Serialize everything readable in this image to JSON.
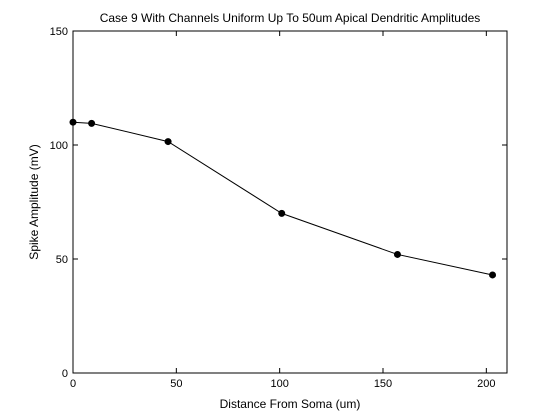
{
  "chart_data": {
    "type": "line",
    "title": "Case 9 With Channels Uniform Up To 50um Apical Dendritic Amplitudes",
    "xlabel": "Distance From Soma (um)",
    "ylabel": "Spike Amplitude (mV)",
    "xlim": [
      0,
      210
    ],
    "ylim": [
      0,
      150
    ],
    "xticks": [
      0,
      50,
      100,
      150,
      200
    ],
    "yticks": [
      0,
      50,
      100,
      150
    ],
    "grid": false,
    "series": [
      {
        "x": [
          0,
          9,
          46,
          101,
          157,
          203
        ],
        "y": [
          110,
          109.5,
          101.5,
          70,
          52,
          43
        ],
        "color": "#000000",
        "marker": "circle"
      }
    ]
  }
}
